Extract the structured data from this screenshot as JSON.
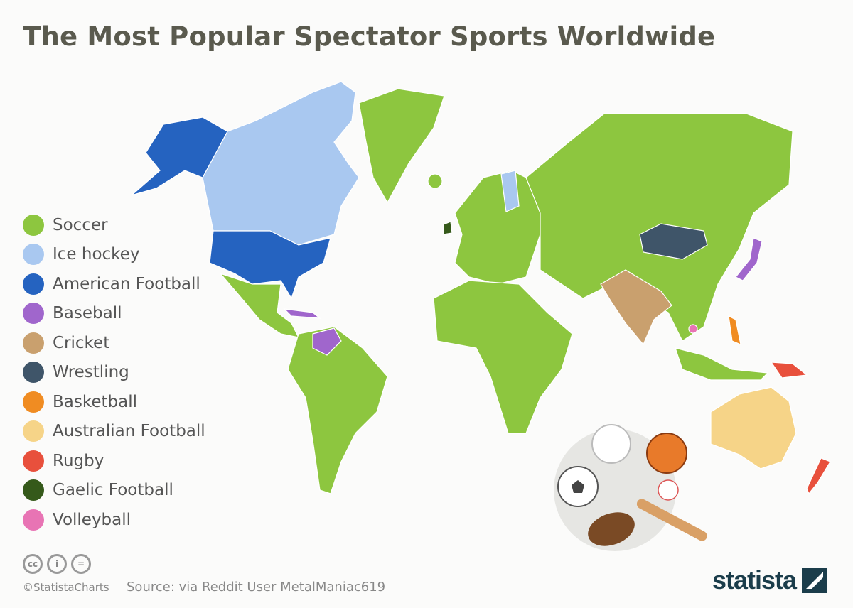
{
  "title": "The Most Popular Spectator Sports Worldwide",
  "legend": [
    {
      "label": "Soccer",
      "color": "#8dc63f"
    },
    {
      "label": "Ice hockey",
      "color": "#a9c8f0"
    },
    {
      "label": "American Football",
      "color": "#2563c0"
    },
    {
      "label": "Baseball",
      "color": "#a066cc"
    },
    {
      "label": "Cricket",
      "color": "#c9a06e"
    },
    {
      "label": "Wrestling",
      "color": "#3f5569"
    },
    {
      "label": "Basketball",
      "color": "#f08c22"
    },
    {
      "label": "Australian Football",
      "color": "#f6d488"
    },
    {
      "label": "Rugby",
      "color": "#e8503c"
    },
    {
      "label": "Gaelic Football",
      "color": "#35591a"
    },
    {
      "label": "Volleyball",
      "color": "#e874b4"
    }
  ],
  "footer": {
    "license_icons": [
      "cc-icon",
      "attribution-icon",
      "no-derivatives-icon"
    ],
    "handle": "©StatistaCharts",
    "source": "Source: via Reddit User MetalManiac619",
    "brand": "statista"
  }
}
